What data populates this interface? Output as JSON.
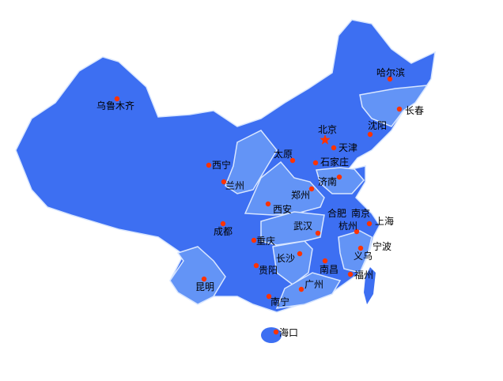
{
  "colors": {
    "dark_region": "#3d6ff2",
    "light_region": "#6394f6",
    "border": "#d8e6ff",
    "city_dot": "#ff3300",
    "capital_star": "#ff3300"
  },
  "cities": [
    {
      "name": "乌鲁木齐",
      "marker": "dot"
    },
    {
      "name": "哈尔滨",
      "marker": "dot"
    },
    {
      "name": "长春",
      "marker": "dot"
    },
    {
      "name": "沈阳",
      "marker": "dot"
    },
    {
      "name": "北京",
      "marker": "star"
    },
    {
      "name": "天津",
      "marker": "dot"
    },
    {
      "name": "太原",
      "marker": "dot"
    },
    {
      "name": "石家庄",
      "marker": "dot"
    },
    {
      "name": "西宁",
      "marker": "dot"
    },
    {
      "name": "兰州",
      "marker": "dot"
    },
    {
      "name": "济南",
      "marker": "dot"
    },
    {
      "name": "郑州",
      "marker": "dot"
    },
    {
      "name": "西安",
      "marker": "dot"
    },
    {
      "name": "合肥",
      "marker": "none"
    },
    {
      "name": "南京",
      "marker": "none"
    },
    {
      "name": "上海",
      "marker": "dot"
    },
    {
      "name": "杭州",
      "marker": "dot"
    },
    {
      "name": "武汉",
      "marker": "dot"
    },
    {
      "name": "成都",
      "marker": "dot"
    },
    {
      "name": "重庆",
      "marker": "dot"
    },
    {
      "name": "宁波",
      "marker": "dot"
    },
    {
      "name": "义乌",
      "marker": "none"
    },
    {
      "name": "长沙",
      "marker": "dot"
    },
    {
      "name": "南昌",
      "marker": "dot"
    },
    {
      "name": "贵阳",
      "marker": "dot"
    },
    {
      "name": "福州",
      "marker": "dot"
    },
    {
      "name": "昆明",
      "marker": "dot"
    },
    {
      "name": "广州",
      "marker": "dot"
    },
    {
      "name": "南宁",
      "marker": "dot"
    },
    {
      "name": "海口",
      "marker": "dot"
    }
  ]
}
